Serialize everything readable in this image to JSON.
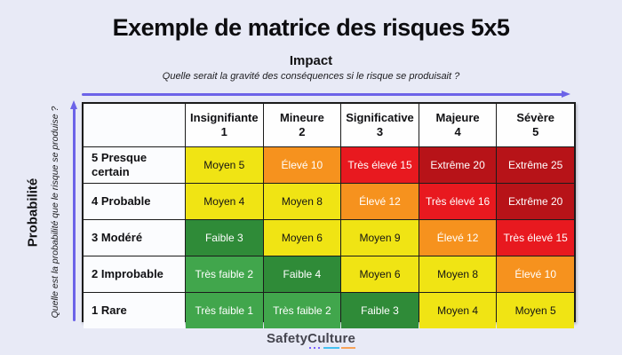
{
  "page": {
    "title": "Exemple de matrice des risques 5x5",
    "background": "#E8EAF6"
  },
  "colors": {
    "arrow": "#6C63E8",
    "grid_border": "#1b1b1b"
  },
  "impact_axis": {
    "label": "Impact",
    "question": "Quelle serait la gravité des conséquences si le risque se produisait ?"
  },
  "probability_axis": {
    "label": "Probabilité",
    "question": "Quelle est la probabilité que le risque se produise ?"
  },
  "palette": {
    "tres-faible": {
      "bg": "#41A64C",
      "fg": "#FFFFFF"
    },
    "faible": {
      "bg": "#2F8B38",
      "fg": "#FFFFFF"
    },
    "moyen": {
      "bg": "#F0E414",
      "fg": "#141414"
    },
    "eleve": {
      "bg": "#F6921E",
      "fg": "#FFFFFF"
    },
    "tres-eleve": {
      "bg": "#E8191F",
      "fg": "#FFFFFF"
    },
    "extreme": {
      "bg": "#B71318",
      "fg": "#FFFFFF"
    }
  },
  "chart_data": {
    "type": "heatmap",
    "title": "Exemple de matrice des risques 5x5",
    "x_axis": {
      "label": "Impact",
      "categories": [
        "Insignifiante 1",
        "Mineure 2",
        "Significative 3",
        "Majeure 4",
        "Sévère 5"
      ]
    },
    "y_axis": {
      "label": "Probabilité",
      "categories": [
        "5 Presque certain",
        "4 Probable",
        "3 Modéré",
        "2 Improbable",
        "1 Rare"
      ]
    },
    "columns": [
      {
        "label": "Insignifiante",
        "number": "1"
      },
      {
        "label": "Mineure",
        "number": "2"
      },
      {
        "label": "Significative",
        "number": "3"
      },
      {
        "label": "Majeure",
        "number": "4"
      },
      {
        "label": "Sévère",
        "number": "5"
      }
    ],
    "rows": [
      {
        "label": "5 Presque certain",
        "cells": [
          {
            "text": "Moyen 5",
            "score": 5,
            "level": "moyen"
          },
          {
            "text": "Élevé 10",
            "score": 10,
            "level": "eleve"
          },
          {
            "text": "Très élevé 15",
            "score": 15,
            "level": "tres-eleve"
          },
          {
            "text": "Extrême 20",
            "score": 20,
            "level": "extreme"
          },
          {
            "text": "Extrême 25",
            "score": 25,
            "level": "extreme"
          }
        ]
      },
      {
        "label": "4 Probable",
        "cells": [
          {
            "text": "Moyen 4",
            "score": 4,
            "level": "moyen"
          },
          {
            "text": "Moyen 8",
            "score": 8,
            "level": "moyen"
          },
          {
            "text": "Élevé 12",
            "score": 12,
            "level": "eleve"
          },
          {
            "text": "Très élevé 16",
            "score": 16,
            "level": "tres-eleve"
          },
          {
            "text": "Extrême 20",
            "score": 20,
            "level": "extreme"
          }
        ]
      },
      {
        "label": "3 Modéré",
        "cells": [
          {
            "text": "Faible 3",
            "score": 3,
            "level": "faible"
          },
          {
            "text": "Moyen 6",
            "score": 6,
            "level": "moyen"
          },
          {
            "text": "Moyen 9",
            "score": 9,
            "level": "moyen"
          },
          {
            "text": "Élevé 12",
            "score": 12,
            "level": "eleve"
          },
          {
            "text": "Très élevé 15",
            "score": 15,
            "level": "tres-eleve"
          }
        ]
      },
      {
        "label": "2 Improbable",
        "cells": [
          {
            "text": "Très faible 2",
            "score": 2,
            "level": "tres-faible"
          },
          {
            "text": "Faible 4",
            "score": 4,
            "level": "faible"
          },
          {
            "text": "Moyen 6",
            "score": 6,
            "level": "moyen"
          },
          {
            "text": "Moyen 8",
            "score": 8,
            "level": "moyen"
          },
          {
            "text": "Élevé 10",
            "score": 10,
            "level": "eleve"
          }
        ]
      },
      {
        "label": "1 Rare",
        "cells": [
          {
            "text": "Très faible 1",
            "score": 1,
            "level": "tres-faible"
          },
          {
            "text": "Très faible 2",
            "score": 2,
            "level": "tres-faible"
          },
          {
            "text": "Faible 3",
            "score": 3,
            "level": "faible"
          },
          {
            "text": "Moyen 4",
            "score": 4,
            "level": "moyen"
          },
          {
            "text": "Moyen 5",
            "score": 5,
            "level": "moyen"
          }
        ]
      }
    ]
  },
  "footer": {
    "brand": "SafetyCulture"
  }
}
